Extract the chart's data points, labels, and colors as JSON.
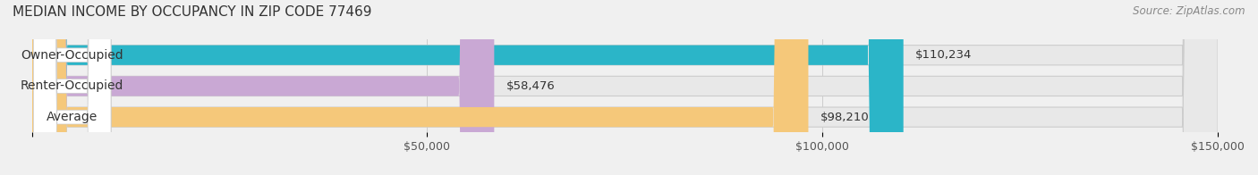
{
  "title": "MEDIAN INCOME BY OCCUPANCY IN ZIP CODE 77469",
  "source": "Source: ZipAtlas.com",
  "categories": [
    "Owner-Occupied",
    "Renter-Occupied",
    "Average"
  ],
  "values": [
    110234,
    58476,
    98210
  ],
  "bar_colors": [
    "#2bb5c8",
    "#c9a8d4",
    "#f5c87a"
  ],
  "bar_edge_colors": [
    "#2bb5c8",
    "#c9a8d4",
    "#f5c87a"
  ],
  "value_labels": [
    "$110,234",
    "$58,476",
    "$98,210"
  ],
  "xlim": [
    0,
    150000
  ],
  "xticks": [
    0,
    50000,
    100000,
    150000
  ],
  "xticklabels": [
    "",
    "$50,000",
    "$100,000",
    "$150,000"
  ],
  "background_color": "#f0f0f0",
  "bar_bg_color": "#e8e8e8",
  "bar_height": 0.62,
  "title_fontsize": 11,
  "label_fontsize": 10,
  "value_fontsize": 9.5,
  "tick_fontsize": 9,
  "source_fontsize": 8.5
}
